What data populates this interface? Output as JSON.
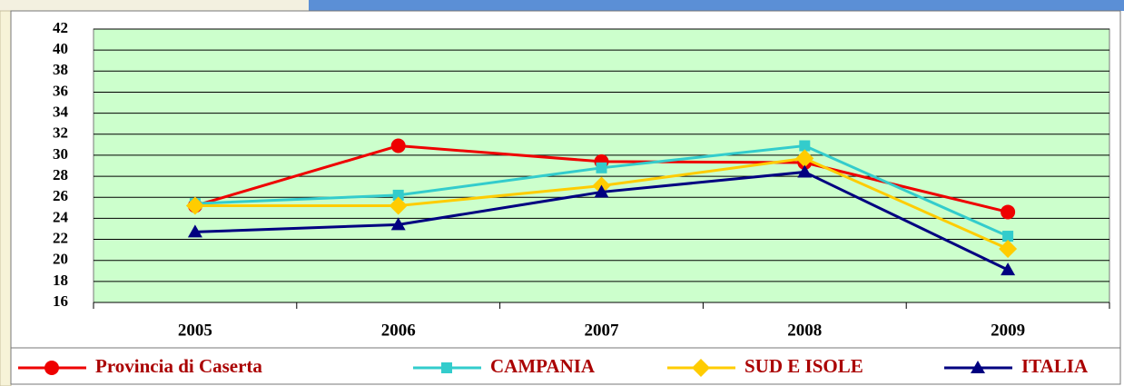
{
  "chart_data": {
    "type": "line",
    "categories": [
      "2005",
      "2006",
      "2007",
      "2008",
      "2009"
    ],
    "series": [
      {
        "name": "Provincia di Caserta",
        "color": "#ee0000",
        "marker": "circle",
        "values": [
          25.2,
          30.9,
          29.4,
          29.3,
          24.6
        ]
      },
      {
        "name": "CAMPANIA",
        "color": "#33cccc",
        "marker": "square",
        "values": [
          25.4,
          26.2,
          28.8,
          30.9,
          22.3
        ]
      },
      {
        "name": "SUD E ISOLE",
        "color": "#ffcc00",
        "marker": "diamond",
        "values": [
          25.2,
          25.2,
          27.1,
          29.7,
          21.1
        ]
      },
      {
        "name": "ITALIA",
        "color": "#000080",
        "marker": "triangle",
        "values": [
          22.7,
          23.4,
          26.5,
          28.4,
          19.1
        ]
      }
    ],
    "ylim": [
      16,
      42
    ],
    "yticks": [
      16,
      18,
      20,
      22,
      24,
      26,
      28,
      30,
      32,
      34,
      36,
      38,
      40,
      42
    ],
    "grid": true,
    "legend": "bottom"
  }
}
